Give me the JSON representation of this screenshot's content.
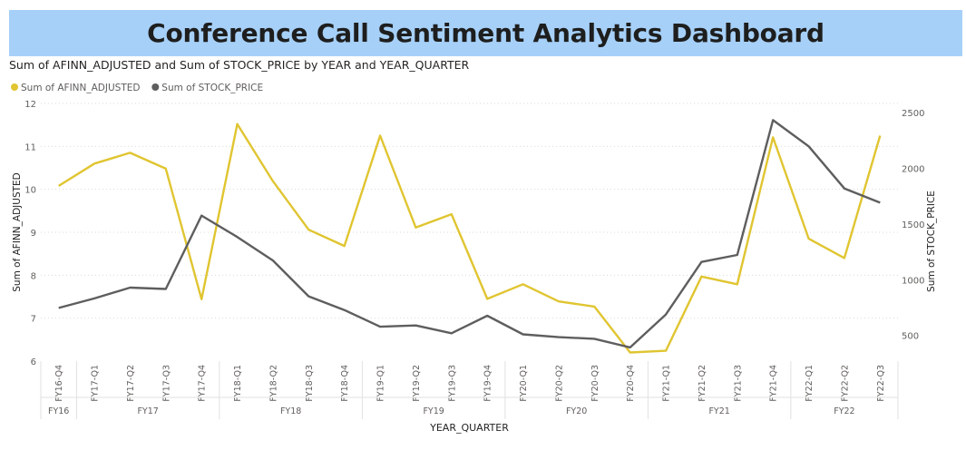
{
  "header": {
    "title": "Conference Call Sentiment Analytics Dashboard"
  },
  "colors": {
    "banner": "#a6d0f8",
    "afinn": "#e0c531",
    "stock": "#5e5e5e"
  },
  "chart_data": {
    "type": "line",
    "title": "Sum of AFINN_ADJUSTED and Sum of STOCK_PRICE by YEAR and YEAR_QUARTER",
    "xlabel": "YEAR_QUARTER",
    "ylabel": "Sum of AFINN_ADJUSTED",
    "y2label": "Sum of STOCK_PRICE",
    "ylim": [
      6,
      12
    ],
    "y2lim": [
      270,
      2580
    ],
    "yticks": [
      6,
      7,
      8,
      9,
      10,
      11,
      12
    ],
    "y2ticks": [
      500,
      1000,
      1500,
      2000,
      2500
    ],
    "legend_position": "top-left",
    "grid": true,
    "categories": [
      "FY16-Q4",
      "FY17-Q1",
      "FY17-Q2",
      "FY17-Q3",
      "FY17-Q4",
      "FY18-Q1",
      "FY18-Q2",
      "FY18-Q3",
      "FY18-Q4",
      "FY19-Q1",
      "FY19-Q2",
      "FY19-Q3",
      "FY19-Q4",
      "FY20-Q1",
      "FY20-Q2",
      "FY20-Q3",
      "FY20-Q4",
      "FY21-Q1",
      "FY21-Q2",
      "FY21-Q3",
      "FY21-Q4",
      "FY22-Q1",
      "FY22-Q2",
      "FY22-Q3"
    ],
    "groups": [
      {
        "label": "FY16",
        "start": 0,
        "end": 0
      },
      {
        "label": "FY17",
        "start": 1,
        "end": 4
      },
      {
        "label": "FY18",
        "start": 5,
        "end": 8
      },
      {
        "label": "FY19",
        "start": 9,
        "end": 12
      },
      {
        "label": "FY20",
        "start": 13,
        "end": 16
      },
      {
        "label": "FY21",
        "start": 17,
        "end": 20
      },
      {
        "label": "FY22",
        "start": 21,
        "end": 23
      }
    ],
    "series": [
      {
        "name": "Sum of AFINN_ADJUSTED",
        "axis": "left",
        "values": [
          10.08,
          10.6,
          10.85,
          10.48,
          7.44,
          11.52,
          10.19,
          9.06,
          8.68,
          11.25,
          9.11,
          9.42,
          7.45,
          7.79,
          7.39,
          7.27,
          6.2,
          6.24,
          7.97,
          7.79,
          11.21,
          8.85,
          8.4,
          11.25
        ]
      },
      {
        "name": "Sum of STOCK_PRICE",
        "axis": "right",
        "values": [
          747,
          832,
          929,
          917,
          1575,
          1383,
          1172,
          851,
          728,
          578,
          590,
          520,
          677,
          510,
          485,
          470,
          393,
          688,
          1159,
          1222,
          2430,
          2195,
          1818,
          1690
        ]
      }
    ]
  }
}
